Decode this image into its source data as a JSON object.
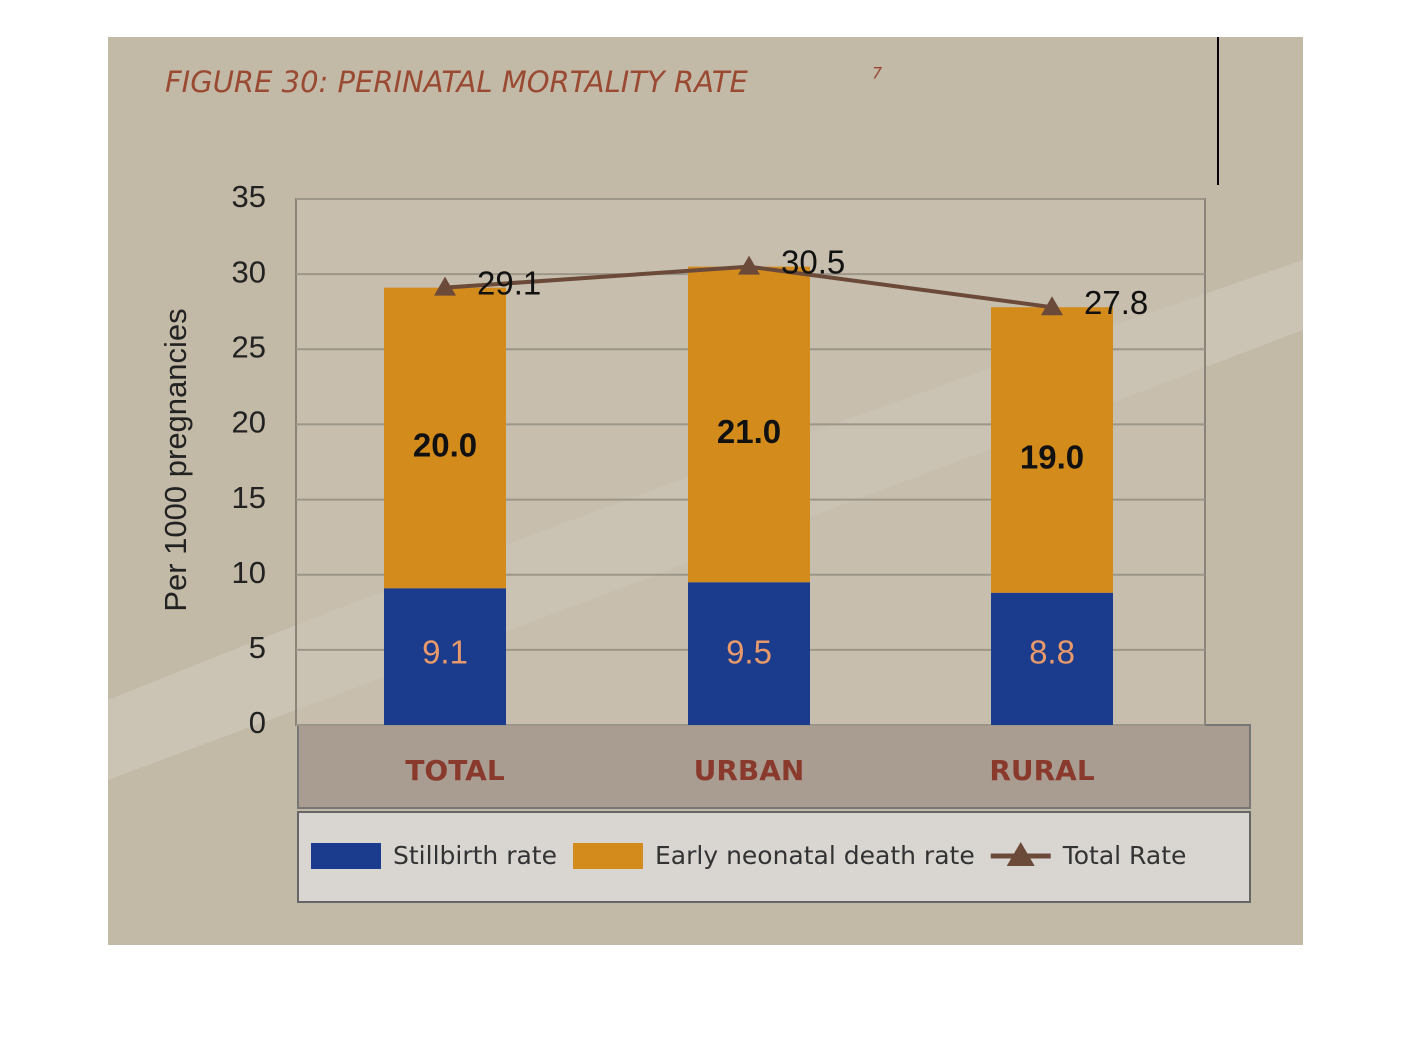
{
  "chart_data": {
    "type": "bar",
    "stacked": true,
    "title": "FIGURE 30: PERINATAL MORTALITY RATE",
    "title_superscript": "7",
    "y_label": "Per 1000 pregnancies",
    "categories": [
      "TOTAL",
      "URBAN",
      "RURAL"
    ],
    "series": [
      {
        "name": "Stillbirth rate",
        "type": "bar",
        "color": "#1b3b8c",
        "values": [
          9.1,
          9.5,
          8.8
        ]
      },
      {
        "name": "Early neonatal death rate",
        "type": "bar",
        "color": "#d38b1c",
        "values": [
          20.0,
          21.0,
          19.0
        ],
        "value_labels": [
          "20.0",
          "21.0",
          "19.0"
        ]
      },
      {
        "name": "Total Rate",
        "type": "line",
        "color": "#6b4a3a",
        "values": [
          29.1,
          30.5,
          27.8
        ]
      }
    ],
    "ylim": [
      0,
      35
    ],
    "yticks": [
      0,
      5,
      10,
      15,
      20,
      25,
      30,
      35
    ],
    "grid": true,
    "legend": "bottom"
  }
}
